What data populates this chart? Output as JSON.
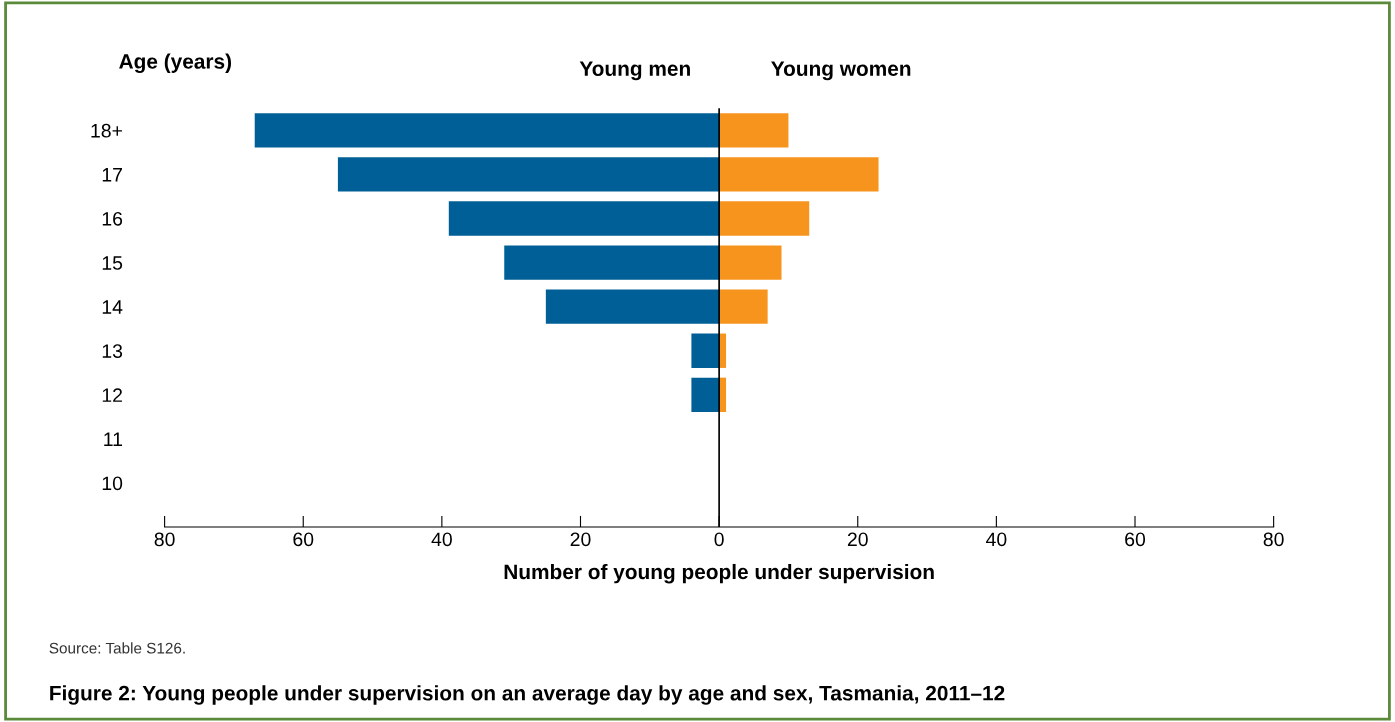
{
  "chart_data": {
    "type": "bar",
    "orientation": "horizontal",
    "stacked": true,
    "title": "Figure 2: Young people under supervision on an average day by age and sex, Tasmania, 2011–12",
    "ylabel": "Age (years)",
    "xlabel": "Number of young people under supervision",
    "categories": [
      "18+",
      "17",
      "16",
      "15",
      "14",
      "13",
      "12",
      "11",
      "10"
    ],
    "series": [
      {
        "name": "Young men",
        "color": "#005f96",
        "values": [
          -67,
          -55,
          -39,
          -31,
          -25,
          -4,
          -4,
          0,
          0
        ]
      },
      {
        "name": "Young women",
        "color": "#f7941d",
        "values": [
          10,
          23,
          13,
          9,
          7,
          1,
          1,
          0,
          0
        ]
      }
    ],
    "xlim": [
      -80,
      80
    ],
    "xticks": [
      {
        "value": -80,
        "label": "80"
      },
      {
        "value": -60,
        "label": "60"
      },
      {
        "value": -40,
        "label": "40"
      },
      {
        "value": -20,
        "label": "20"
      },
      0,
      20,
      40,
      60,
      80
    ],
    "ref_lines": [
      {
        "axis": "x",
        "value": 0,
        "color": "#000000"
      }
    ],
    "annotations": [
      "Source: Table S126."
    ],
    "grid": false,
    "legend": false
  }
}
